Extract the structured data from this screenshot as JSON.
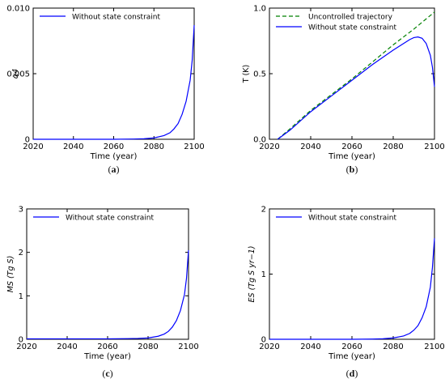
{
  "chart_data": [
    {
      "type": "line",
      "caption": "a",
      "xlabel": "Time (year)",
      "ylabel": "α4",
      "xlim": [
        2020,
        2100
      ],
      "ylim": [
        0,
        0.01
      ],
      "xticks": [
        "2020",
        "2040",
        "2060",
        "2080",
        "2100"
      ],
      "yticks": [
        "0",
        "0.005",
        "0.010"
      ],
      "legend_position": "top-left",
      "series": [
        {
          "name": "Without state constraint",
          "color": "#0000ff",
          "dash": "solid",
          "x": [
            2020,
            2060,
            2070,
            2075,
            2080,
            2085,
            2088,
            2090,
            2092,
            2094,
            2096,
            2098,
            2099,
            2100
          ],
          "y": [
            0,
            0,
            2e-05,
            4e-05,
            0.0001,
            0.00028,
            0.0005,
            0.0008,
            0.0012,
            0.0019,
            0.0029,
            0.0045,
            0.006,
            0.0087
          ]
        }
      ]
    },
    {
      "type": "line",
      "caption": "b",
      "xlabel": "Time (year)",
      "ylabel": "T (K)",
      "xlim": [
        2020,
        2100
      ],
      "ylim": [
        0,
        1.0
      ],
      "xticks": [
        "2020",
        "2040",
        "2060",
        "2080",
        "2100"
      ],
      "yticks": [
        "0.0",
        "0.5",
        "1.0"
      ],
      "legend_position": "top-left",
      "series": [
        {
          "name": "Uncontrolled trajectory",
          "color": "#008000",
          "dash": "dashed",
          "x": [
            2024,
            2030,
            2040,
            2050,
            2060,
            2070,
            2080,
            2090,
            2100
          ],
          "y": [
            0,
            0.08,
            0.22,
            0.34,
            0.46,
            0.59,
            0.72,
            0.84,
            0.97
          ]
        },
        {
          "name": "Without state constraint",
          "color": "#0000ff",
          "dash": "solid",
          "x": [
            2024,
            2030,
            2040,
            2050,
            2060,
            2070,
            2080,
            2085,
            2088,
            2090,
            2092,
            2094,
            2096,
            2098,
            2099,
            2100
          ],
          "y": [
            0,
            0.07,
            0.21,
            0.33,
            0.45,
            0.57,
            0.68,
            0.73,
            0.76,
            0.775,
            0.78,
            0.77,
            0.73,
            0.64,
            0.55,
            0.4
          ]
        }
      ]
    },
    {
      "type": "line",
      "caption": "c",
      "xlabel": "Time (year)",
      "ylabel": "MS (Tg S)",
      "xlim": [
        2020,
        2100
      ],
      "ylim": [
        0,
        3
      ],
      "xticks": [
        "2020",
        "2040",
        "2060",
        "2080",
        "2100"
      ],
      "yticks": [
        "0",
        "1",
        "2",
        "3"
      ],
      "legend_position": "top-left",
      "series": [
        {
          "name": "Without state constraint",
          "color": "#0000ff",
          "dash": "solid",
          "x": [
            2020,
            2060,
            2070,
            2075,
            2080,
            2085,
            2088,
            2090,
            2092,
            2094,
            2096,
            2098,
            2099,
            2100
          ],
          "y": [
            0.01,
            0.01,
            0.015,
            0.02,
            0.03,
            0.07,
            0.12,
            0.18,
            0.28,
            0.43,
            0.66,
            1.03,
            1.4,
            2.05
          ]
        }
      ]
    },
    {
      "type": "line",
      "caption": "d",
      "xlabel": "Time (year)",
      "ylabel": "ES (Tg S yr−1)",
      "xlim": [
        2020,
        2100
      ],
      "ylim": [
        0,
        2
      ],
      "xticks": [
        "2020",
        "2040",
        "2060",
        "2080",
        "2100"
      ],
      "yticks": [
        "0",
        "1",
        "2"
      ],
      "legend_position": "top-left",
      "series": [
        {
          "name": "Without state constraint",
          "color": "#0000ff",
          "dash": "solid",
          "x": [
            2020,
            2060,
            2070,
            2075,
            2080,
            2085,
            2088,
            2090,
            2092,
            2094,
            2096,
            2098,
            2099,
            2100
          ],
          "y": [
            0,
            0,
            0.003,
            0.008,
            0.02,
            0.05,
            0.09,
            0.14,
            0.21,
            0.33,
            0.5,
            0.8,
            1.1,
            1.55
          ]
        }
      ]
    }
  ]
}
